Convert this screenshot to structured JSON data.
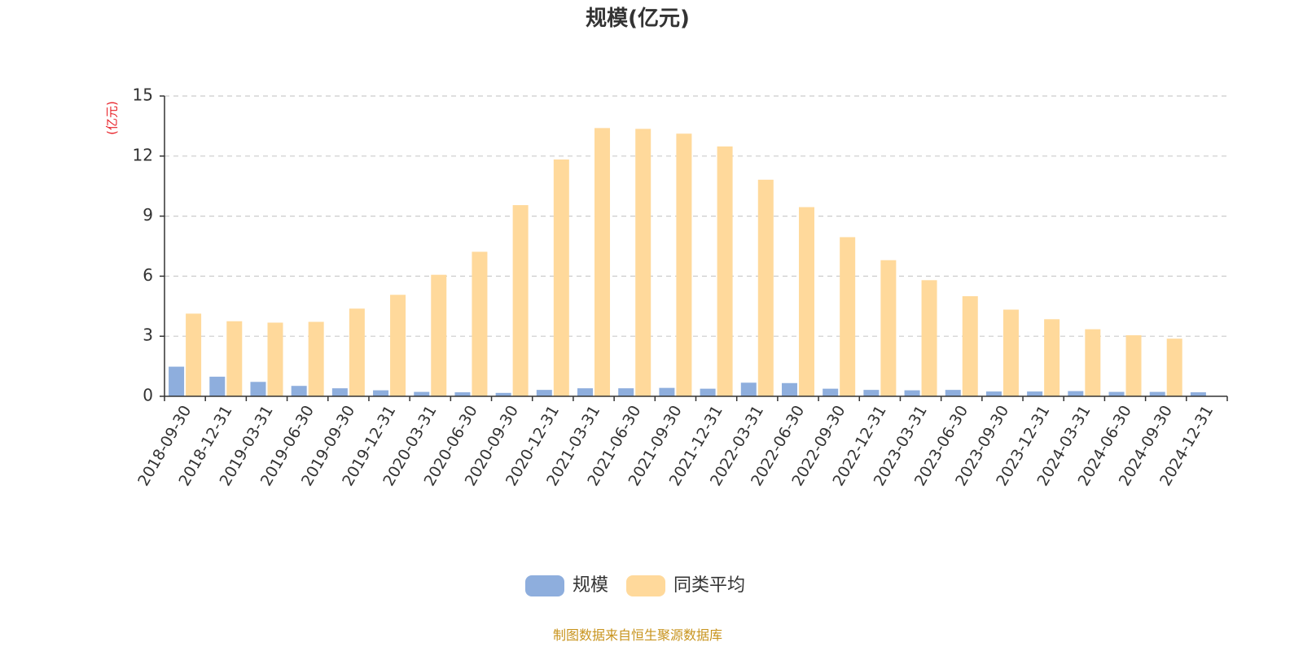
{
  "chart_data": {
    "type": "bar",
    "title": "规模(亿元)",
    "y_unit": "(亿元)",
    "ylim": [
      0,
      15
    ],
    "yticks": [
      0,
      3,
      6,
      9,
      12,
      15
    ],
    "grid": true,
    "legend_position": "bottom",
    "categories": [
      "2018-09-30",
      "2018-12-31",
      "2019-03-31",
      "2019-06-30",
      "2019-09-30",
      "2019-12-31",
      "2020-03-31",
      "2020-06-30",
      "2020-09-30",
      "2020-12-31",
      "2021-03-31",
      "2021-06-30",
      "2021-09-30",
      "2021-12-31",
      "2022-03-31",
      "2022-06-30",
      "2022-09-30",
      "2022-12-31",
      "2023-03-31",
      "2023-06-30",
      "2023-09-30",
      "2023-12-31",
      "2024-03-31",
      "2024-06-30",
      "2024-09-30",
      "2024-12-31"
    ],
    "series": [
      {
        "name": "规模",
        "color": "#8eaedd",
        "values": [
          1.48,
          0.98,
          0.72,
          0.52,
          0.4,
          0.3,
          0.22,
          0.2,
          0.17,
          0.32,
          0.4,
          0.4,
          0.42,
          0.38,
          0.68,
          0.66,
          0.38,
          0.32,
          0.3,
          0.32,
          0.24,
          0.24,
          0.26,
          0.22,
          0.22,
          0.2
        ]
      },
      {
        "name": "同类平均",
        "color": "#ffd99b",
        "values": [
          4.13,
          3.75,
          3.68,
          3.72,
          4.38,
          5.07,
          6.07,
          7.22,
          9.55,
          11.83,
          13.4,
          13.36,
          13.12,
          12.48,
          10.82,
          9.45,
          7.95,
          6.8,
          5.8,
          5.0,
          4.33,
          3.85,
          3.35,
          3.05,
          2.88,
          null
        ]
      }
    ]
  },
  "footer": {
    "source": "制图数据来自恒生聚源数据库"
  }
}
